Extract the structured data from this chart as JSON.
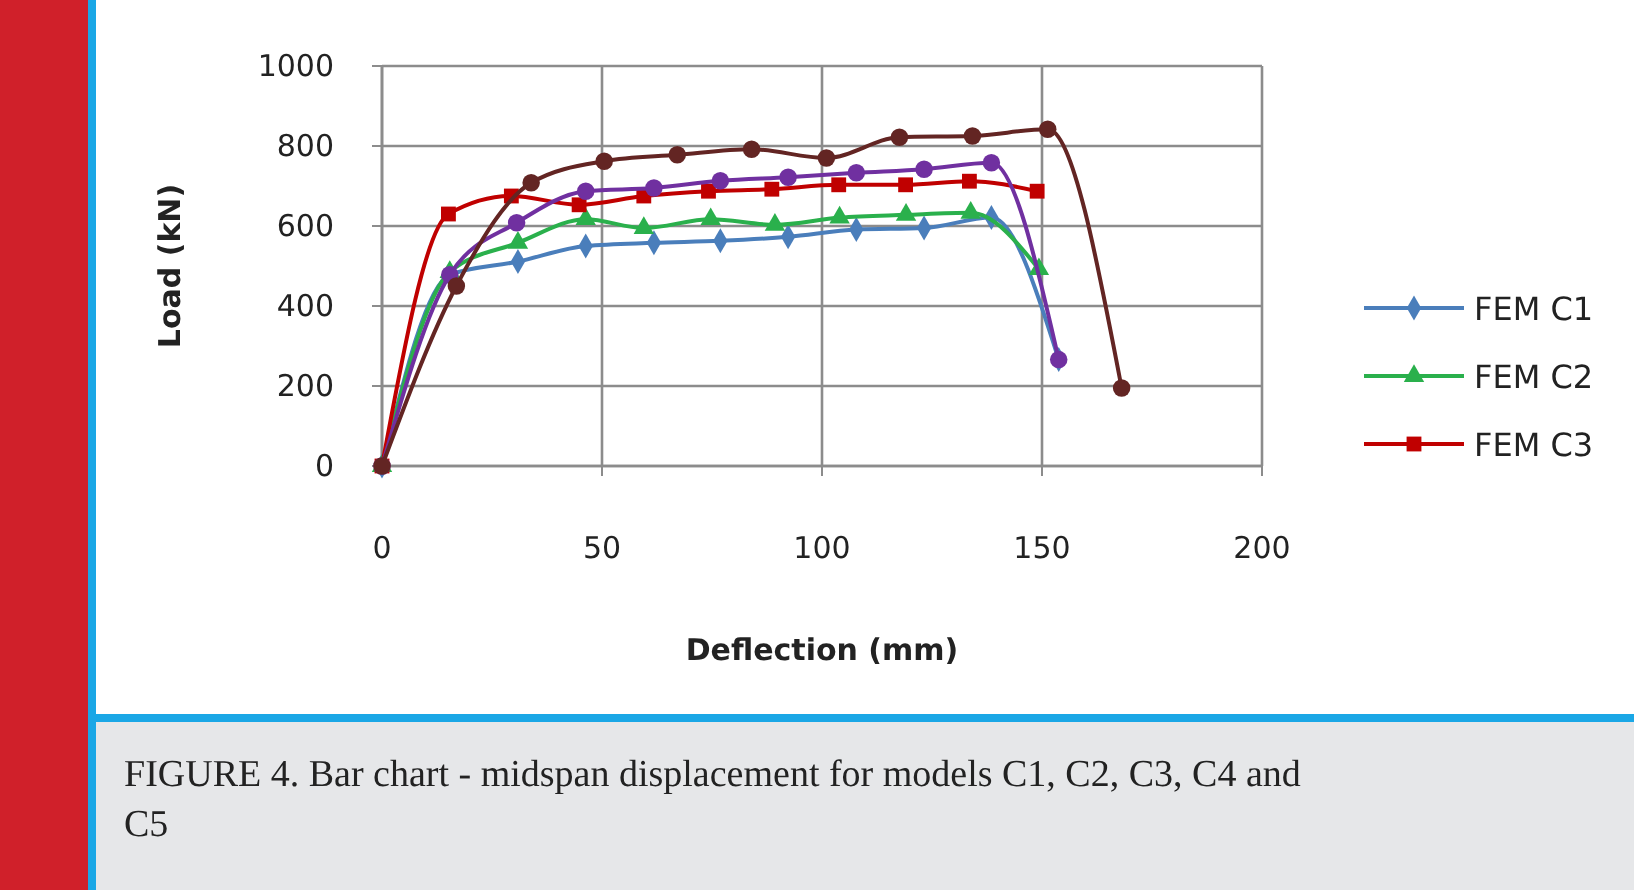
{
  "chart_data": {
    "type": "line",
    "xlabel": "Deflection (mm)",
    "ylabel": "Load (kN)",
    "xlim": [
      0,
      200
    ],
    "xticks": [
      0,
      50,
      100,
      150,
      200
    ],
    "ylim": [
      0,
      1000
    ],
    "yticks": [
      0,
      200,
      400,
      600,
      800,
      1000
    ],
    "grid": true,
    "legend": "right",
    "line_style": "solid",
    "annotations": [
      "FIGURE 4. Bar chart - midspan displacement for models C1, C2, C3, C4 and C5"
    ],
    "series": [
      {
        "name": "FEM C1",
        "color": "#4a7ebb",
        "marker": "diamond",
        "x": [
          0,
          15.4,
          30.9,
          46.3,
          61.8,
          76.9,
          92.3,
          107.8,
          123.2,
          138.5,
          153.8
        ],
        "values": [
          0,
          478,
          511,
          550,
          558,
          563,
          573,
          591,
          595,
          621,
          266
        ]
      },
      {
        "name": "FEM C2",
        "color": "#2ab04c",
        "marker": "triangle",
        "x": [
          0,
          15.4,
          30.9,
          46.3,
          59.5,
          74.7,
          89.3,
          104,
          119.1,
          133.8,
          149.3
        ],
        "values": [
          0,
          485,
          558,
          617,
          595,
          617,
          603,
          621,
          628,
          633,
          492
        ]
      },
      {
        "name": "FEM C3",
        "color": "#c00000",
        "marker": "square",
        "x": [
          0,
          15.1,
          29.4,
          44.8,
          59.5,
          74.2,
          88.6,
          103.8,
          119,
          133.5,
          148.9
        ],
        "values": [
          0,
          630,
          675,
          653,
          675,
          687,
          692,
          703,
          703,
          712,
          687
        ]
      },
      {
        "color": "#7030a0",
        "marker": "circle",
        "x": [
          0,
          15.4,
          30.6,
          46.3,
          61.8,
          76.9,
          92.3,
          107.8,
          123.2,
          138.5,
          153.8
        ],
        "values": [
          0,
          478,
          608,
          687,
          695,
          713,
          722,
          733,
          742,
          758,
          266
        ]
      },
      {
        "color": "#632523",
        "marker": "circle",
        "x": [
          0,
          16.9,
          33.9,
          50.5,
          67.1,
          84,
          101,
          117.6,
          134.2,
          151.3,
          168.1
        ],
        "values": [
          0,
          450,
          708,
          762,
          778,
          792,
          770,
          822,
          825,
          842,
          195
        ]
      }
    ]
  }
}
